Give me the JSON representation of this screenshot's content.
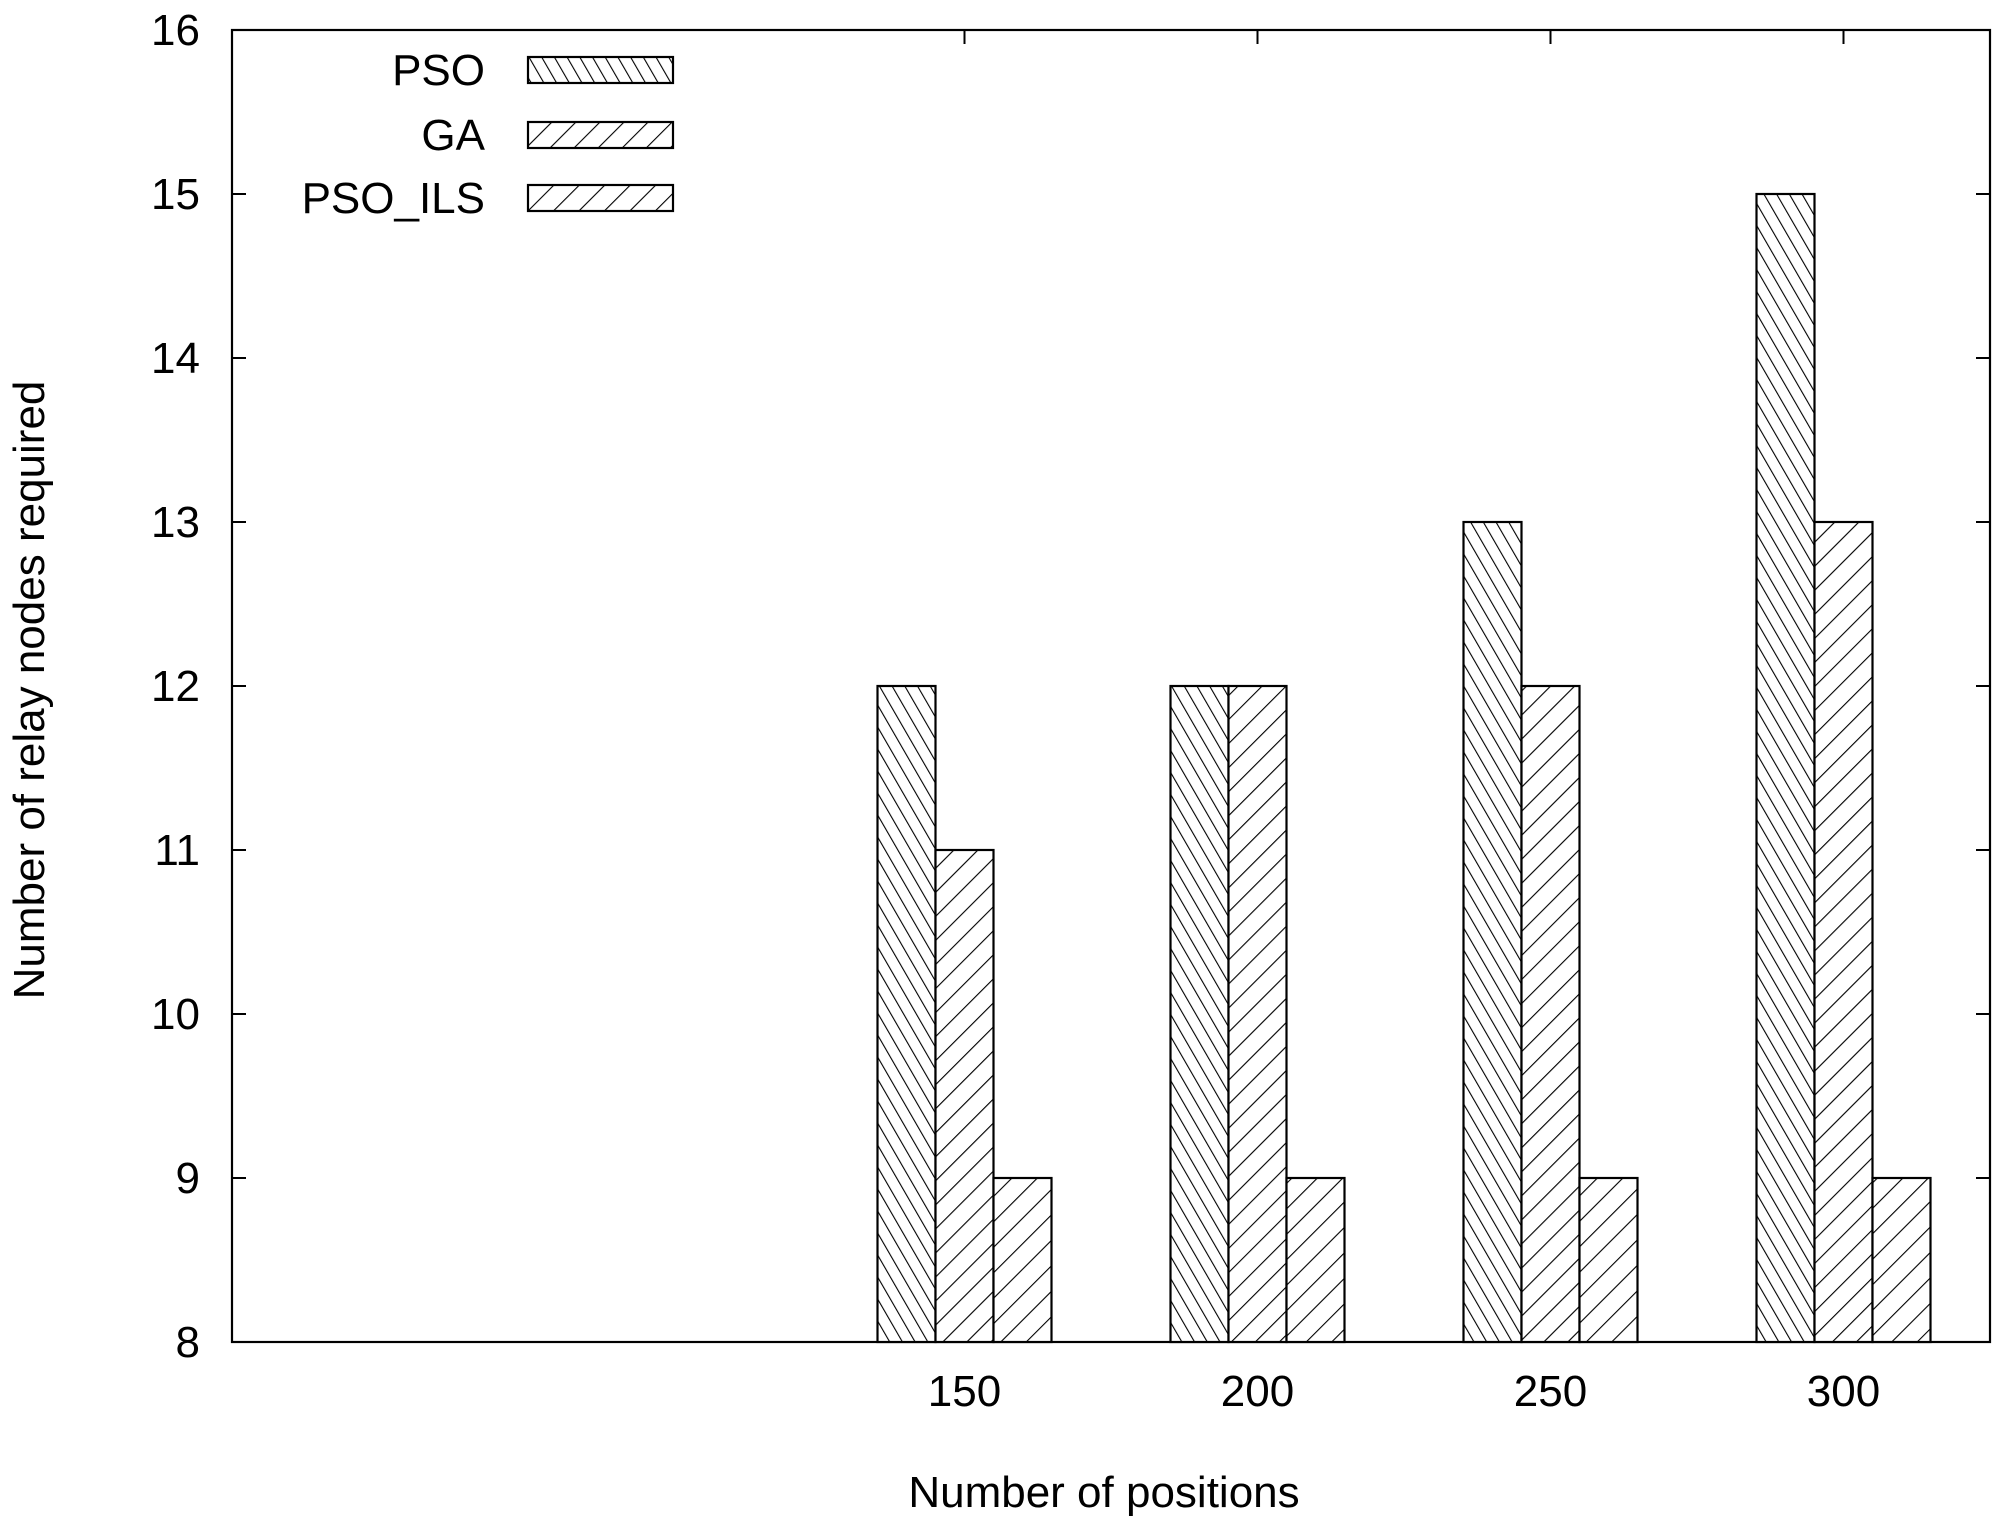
{
  "chart_data": {
    "type": "bar",
    "title": "",
    "xlabel": "Number of positions",
    "ylabel": "Number of relay nodes required",
    "categories": [
      "150",
      "200",
      "250",
      "300"
    ],
    "series": [
      {
        "name": "PSO",
        "values": [
          12,
          12,
          13,
          15
        ],
        "pattern": "dense-diagonal"
      },
      {
        "name": "GA",
        "values": [
          11,
          12,
          12,
          13
        ],
        "pattern": "back-diagonal"
      },
      {
        "name": "PSO_ILS",
        "values": [
          9,
          9,
          9,
          9
        ],
        "pattern": "forward-diagonal"
      }
    ],
    "ylim": [
      8,
      16
    ],
    "yticks": [
      8,
      9,
      10,
      11,
      12,
      13,
      14,
      15,
      16
    ],
    "x_range": [
      0,
      6
    ],
    "x_positions": [
      2.5,
      3.5,
      4.5,
      5.5
    ],
    "grid": false,
    "legend_position": "top-left",
    "colors": {
      "bar_fill": "#ffffff",
      "stroke": "#000000"
    }
  }
}
